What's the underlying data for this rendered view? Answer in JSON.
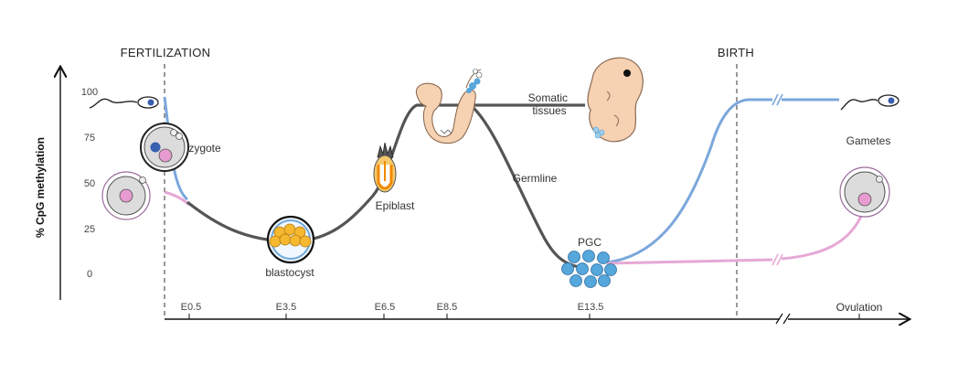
{
  "headers": {
    "fertilization": "FERTILIZATION",
    "birth": "BIRTH"
  },
  "y_axis": {
    "label": "% CpG methylation",
    "ticks": [
      "100",
      "75",
      "50",
      "25",
      "0"
    ]
  },
  "x_axis": {
    "ticks": [
      "E0.5",
      "E3.5",
      "E6.5",
      "E8.5",
      "E13.5"
    ],
    "end_label": "Ovulation"
  },
  "stage_labels": {
    "zygote": "zygote",
    "blastocyst": "blastocyst",
    "epiblast": "Epiblast",
    "somatic": "Somatic\ntissues",
    "germline": "Germline",
    "pgc": "PGC",
    "gametes": "Gametes"
  },
  "colors": {
    "paternal": "#7ba7dc",
    "maternal": "#e6a9d6",
    "embryonic": "#555555",
    "embryo_tissue": "#f6d1b2",
    "blastomere": "#f5b82e",
    "pgc_cell": "#56a7db",
    "egg_cytoplasm": "#dcdcdc",
    "pronucleus_blue": "#3a5fb0",
    "pronucleus_pink": "#e79bd0"
  },
  "icons": [
    "sperm-icon",
    "oocyte-icon",
    "zygote-icon",
    "blastocyst-icon",
    "epiblast-icon",
    "embryo-e8-icon",
    "embryo-e13-icon",
    "pgc-cluster-icon"
  ]
}
